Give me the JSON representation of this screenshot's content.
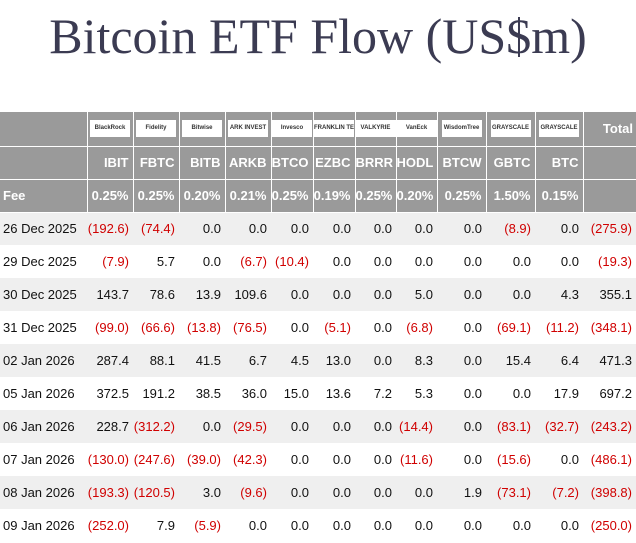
{
  "title": "Bitcoin ETF Flow (US$m)",
  "table": {
    "issuers": [
      "BlackRock",
      "Fidelity",
      "Bitwise",
      "ARK INVEST",
      "Invesco",
      "FRANKLIN TEMPLETON",
      "VALKYRIE",
      "VanEck",
      "WisdomTree",
      "GRAYSCALE",
      "GRAYSCALE"
    ],
    "total_label": "Total",
    "tickers": [
      "IBIT",
      "FBTC",
      "BITB",
      "ARKB",
      "BTCO",
      "EZBC",
      "BRRR",
      "HODL",
      "BTCW",
      "GBTC",
      "BTC"
    ],
    "fee_label": "Fee",
    "fees": [
      "0.25%",
      "0.25%",
      "0.20%",
      "0.21%",
      "0.25%",
      "0.19%",
      "0.25%",
      "0.20%",
      "0.25%",
      "1.50%",
      "0.15%"
    ],
    "rows": [
      {
        "date": "26 Dec 2025",
        "values": [
          "(192.6)",
          "(74.4)",
          "0.0",
          "0.0",
          "0.0",
          "0.0",
          "0.0",
          "0.0",
          "0.0",
          "(8.9)",
          "0.0",
          "(275.9)"
        ]
      },
      {
        "date": "29 Dec 2025",
        "values": [
          "(7.9)",
          "5.7",
          "0.0",
          "(6.7)",
          "(10.4)",
          "0.0",
          "0.0",
          "0.0",
          "0.0",
          "0.0",
          "0.0",
          "(19.3)"
        ]
      },
      {
        "date": "30 Dec 2025",
        "values": [
          "143.7",
          "78.6",
          "13.9",
          "109.6",
          "0.0",
          "0.0",
          "0.0",
          "5.0",
          "0.0",
          "0.0",
          "4.3",
          "355.1"
        ]
      },
      {
        "date": "31 Dec 2025",
        "values": [
          "(99.0)",
          "(66.6)",
          "(13.8)",
          "(76.5)",
          "0.0",
          "(5.1)",
          "0.0",
          "(6.8)",
          "0.0",
          "(69.1)",
          "(11.2)",
          "(348.1)"
        ]
      },
      {
        "date": "02 Jan 2026",
        "values": [
          "287.4",
          "88.1",
          "41.5",
          "6.7",
          "4.5",
          "13.0",
          "0.0",
          "8.3",
          "0.0",
          "15.4",
          "6.4",
          "471.3"
        ]
      },
      {
        "date": "05 Jan 2026",
        "values": [
          "372.5",
          "191.2",
          "38.5",
          "36.0",
          "15.0",
          "13.6",
          "7.2",
          "5.3",
          "0.0",
          "0.0",
          "17.9",
          "697.2"
        ]
      },
      {
        "date": "06 Jan 2026",
        "values": [
          "228.7",
          "(312.2)",
          "0.0",
          "(29.5)",
          "0.0",
          "0.0",
          "0.0",
          "(14.4)",
          "0.0",
          "(83.1)",
          "(32.7)",
          "(243.2)"
        ]
      },
      {
        "date": "07 Jan 2026",
        "values": [
          "(130.0)",
          "(247.6)",
          "(39.0)",
          "(42.3)",
          "0.0",
          "0.0",
          "0.0",
          "(11.6)",
          "0.0",
          "(15.6)",
          "0.0",
          "(486.1)"
        ]
      },
      {
        "date": "08 Jan 2026",
        "values": [
          "(193.3)",
          "(120.5)",
          "3.0",
          "(9.6)",
          "0.0",
          "0.0",
          "0.0",
          "0.0",
          "1.9",
          "(73.1)",
          "(7.2)",
          "(398.8)"
        ]
      },
      {
        "date": "09 Jan 2026",
        "values": [
          "(252.0)",
          "7.9",
          "(5.9)",
          "0.0",
          "0.0",
          "0.0",
          "0.0",
          "0.0",
          "0.0",
          "0.0",
          "0.0",
          "(250.0)"
        ]
      }
    ]
  }
}
